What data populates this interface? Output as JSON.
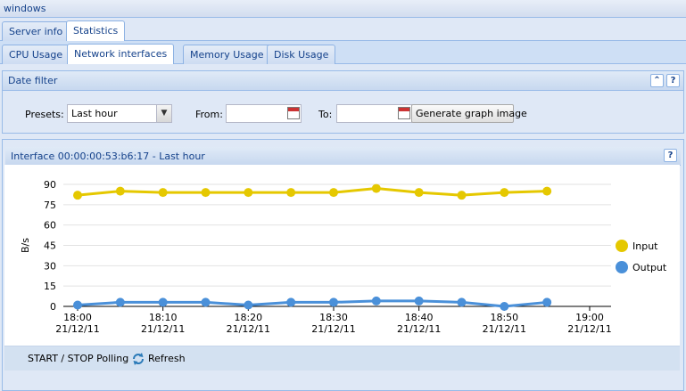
{
  "window": {
    "title": "windows"
  },
  "main_tabs": [
    "Server info",
    "Statistics"
  ],
  "sub_tabs": [
    "CPU Usage",
    "Network interfaces",
    "Memory Usage",
    "Disk Usage"
  ],
  "date_filter": {
    "title": "Date filter",
    "presets_label": "Presets:",
    "preset_value": "Last hour",
    "from_label": "From:",
    "from_value": "",
    "to_label": "To:",
    "to_value": "",
    "generate_label": "Generate graph image"
  },
  "graph_panel": {
    "title": "Interface 00:00:00:53:b6:17 - Last hour",
    "poll_label": "START / STOP Polling",
    "refresh_label": "Refresh"
  },
  "colors": {
    "input": "#e5c800",
    "output": "#4a90d9",
    "accent": "#15428b"
  },
  "chart_data": {
    "type": "line",
    "ylabel": "B/s",
    "ylim": [
      0,
      90
    ],
    "yticks": [
      0,
      15,
      30,
      45,
      60,
      75,
      90
    ],
    "xticks": [
      {
        "time": "18:00",
        "date": "21/12/11"
      },
      {
        "time": "18:10",
        "date": "21/12/11"
      },
      {
        "time": "18:20",
        "date": "21/12/11"
      },
      {
        "time": "18:30",
        "date": "21/12/11"
      },
      {
        "time": "18:40",
        "date": "21/12/11"
      },
      {
        "time": "18:50",
        "date": "21/12/11"
      },
      {
        "time": "19:00",
        "date": "21/12/11"
      }
    ],
    "x": [
      "18:00",
      "18:05",
      "18:10",
      "18:15",
      "18:20",
      "18:25",
      "18:30",
      "18:35",
      "18:40",
      "18:45",
      "18:50",
      "18:55"
    ],
    "series": [
      {
        "name": "Input",
        "color": "#e5c800",
        "values": [
          82,
          85,
          84,
          84,
          84,
          84,
          84,
          87,
          84,
          82,
          84,
          85
        ]
      },
      {
        "name": "Output",
        "color": "#4a90d9",
        "values": [
          1,
          3,
          3,
          3,
          1,
          3,
          3,
          4,
          4,
          3,
          0,
          3
        ]
      }
    ],
    "legend": "right",
    "grid": true
  }
}
